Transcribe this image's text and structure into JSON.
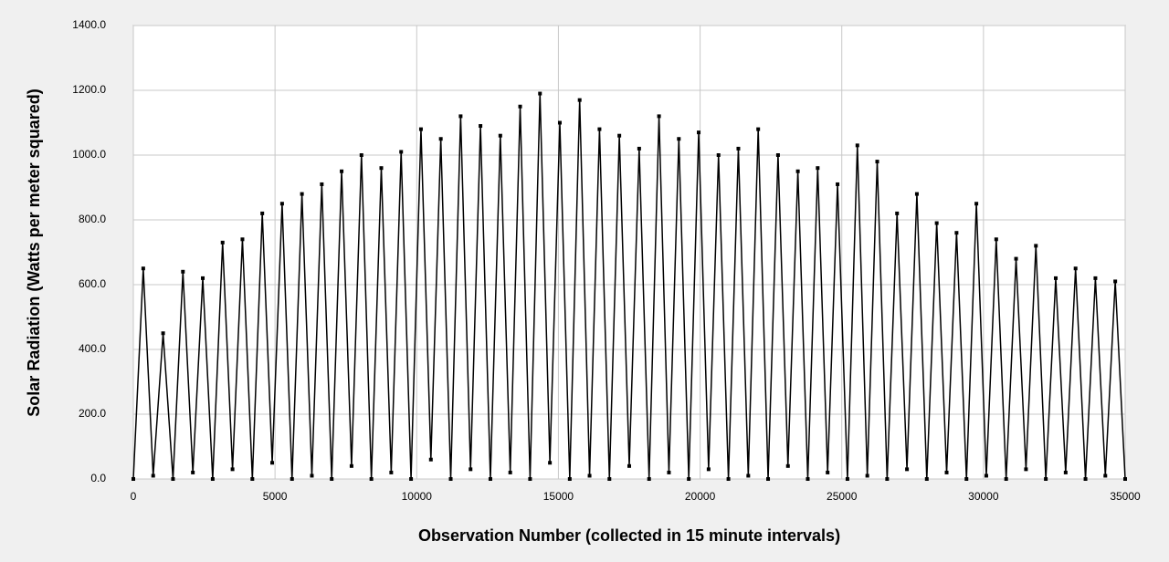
{
  "chart_data": {
    "type": "line",
    "x_label": "Observation Number (collected in 15 minute intervals)",
    "y_label": "Solar Radiation (Watts per meter squared)",
    "x": [
      0,
      350,
      700,
      1050,
      1400,
      1750,
      2100,
      2450,
      2800,
      3150,
      3500,
      3850,
      4200,
      4550,
      4900,
      5250,
      5600,
      5950,
      6300,
      6650,
      7000,
      7350,
      7700,
      8050,
      8400,
      8750,
      9100,
      9450,
      9800,
      10150,
      10500,
      10850,
      11200,
      11550,
      11900,
      12250,
      12600,
      12950,
      13300,
      13650,
      14000,
      14350,
      14700,
      15050,
      15400,
      15750,
      16100,
      16450,
      16800,
      17150,
      17500,
      17850,
      18200,
      18550,
      18900,
      19250,
      19600,
      19950,
      20300,
      20650,
      21000,
      21350,
      21700,
      22050,
      22400,
      22750,
      23100,
      23450,
      23800,
      24150,
      24500,
      24850,
      25200,
      25550,
      25900,
      26250,
      26600,
      26950,
      27300,
      27650,
      28000,
      28350,
      28700,
      29050,
      29400,
      29750,
      30100,
      30450,
      30800,
      31150,
      31500,
      31850,
      32200,
      32550,
      32900,
      33250,
      33600,
      33950,
      34300,
      34650,
      35000
    ],
    "values": [
      0,
      650,
      10,
      450,
      0,
      640,
      20,
      620,
      0,
      730,
      30,
      740,
      0,
      820,
      50,
      850,
      0,
      880,
      10,
      910,
      0,
      950,
      40,
      1000,
      0,
      960,
      20,
      1010,
      0,
      1080,
      60,
      1050,
      0,
      1120,
      30,
      1090,
      0,
      1060,
      20,
      1150,
      0,
      1190,
      50,
      1100,
      0,
      1170,
      10,
      1080,
      0,
      1060,
      40,
      1020,
      0,
      1120,
      20,
      1050,
      0,
      1070,
      30,
      1000,
      0,
      1020,
      10,
      1080,
      0,
      1000,
      40,
      950,
      0,
      960,
      20,
      910,
      0,
      1030,
      10,
      980,
      0,
      820,
      30,
      880,
      0,
      790,
      20,
      760,
      0,
      850,
      10,
      740,
      0,
      680,
      30,
      720,
      0,
      620,
      20,
      650,
      0,
      620,
      10,
      610,
      0
    ],
    "color": "#000000",
    "marker": "square",
    "grid": true,
    "xlim": [
      0,
      35000
    ],
    "xticks": [
      0,
      5000,
      10000,
      15000,
      20000,
      25000,
      30000,
      35000
    ],
    "ylim": [
      0,
      1400
    ],
    "yticks": [
      {
        "value": 0,
        "label": "0.0"
      },
      {
        "value": 200,
        "label": "200.0"
      },
      {
        "value": 400,
        "label": "400.0"
      },
      {
        "value": 600,
        "label": "600.0"
      },
      {
        "value": 800,
        "label": "800.0"
      },
      {
        "value": 1000,
        "label": "1000.0"
      },
      {
        "value": 1200,
        "label": "1200.0"
      },
      {
        "value": 1400,
        "label": "1400.0"
      }
    ]
  }
}
